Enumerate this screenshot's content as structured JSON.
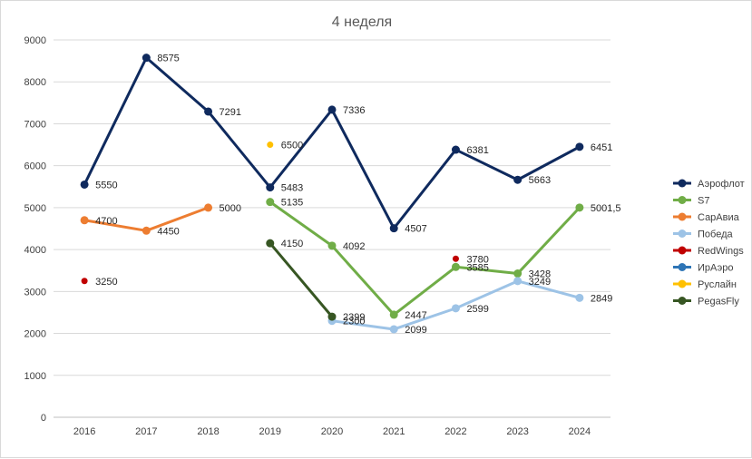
{
  "chart_data": {
    "type": "line",
    "title": "4 неделя",
    "xlabel": "",
    "ylabel": "",
    "categories": [
      "2016",
      "2017",
      "2018",
      "2019",
      "2020",
      "2021",
      "2022",
      "2023",
      "2024"
    ],
    "ylim": [
      0,
      9000
    ],
    "yticks": [
      0,
      1000,
      2000,
      3000,
      4000,
      5000,
      6000,
      7000,
      8000,
      9000
    ],
    "grid": true,
    "legend_position": "right",
    "series": [
      {
        "name": "Аэрофлот",
        "color": "#0f2a5e",
        "values": [
          5550,
          8575,
          7291,
          5483,
          7336,
          4507,
          6381,
          5663,
          6451
        ],
        "labels": [
          "5550",
          "8575",
          "7291",
          "5483",
          "7336",
          "4507",
          "6381",
          "5663",
          "6451"
        ]
      },
      {
        "name": "S7",
        "color": "#70ad47",
        "values": [
          null,
          null,
          null,
          5135,
          4092,
          2447,
          3585,
          3428,
          5001.5
        ],
        "labels": [
          null,
          null,
          null,
          "5135",
          "4092",
          "2447",
          "3585",
          "3428",
          "5001,5"
        ]
      },
      {
        "name": "СарАвиа",
        "color": "#ed7d31",
        "values": [
          4700,
          4450,
          5000,
          null,
          null,
          null,
          null,
          null,
          null
        ],
        "labels": [
          "4700",
          "4450",
          "5000",
          null,
          null,
          null,
          null,
          null,
          null
        ]
      },
      {
        "name": "Победа",
        "color": "#9dc3e6",
        "values": [
          null,
          null,
          null,
          null,
          2300,
          2099,
          2599,
          3249,
          2849
        ],
        "labels": [
          null,
          null,
          null,
          null,
          "2300",
          "2099",
          "2599",
          "3249",
          "2849"
        ]
      },
      {
        "name": "RedWings",
        "color": "#c00000",
        "values": [
          3250,
          null,
          null,
          null,
          null,
          null,
          3780,
          null,
          null
        ],
        "labels": [
          "3250",
          null,
          null,
          null,
          null,
          null,
          "3780",
          null,
          null
        ]
      },
      {
        "name": "ИрАэро",
        "color": "#2e75b6",
        "values": [
          null,
          null,
          null,
          null,
          null,
          null,
          null,
          null,
          null
        ],
        "labels": [
          null,
          null,
          null,
          null,
          null,
          null,
          null,
          null,
          null
        ]
      },
      {
        "name": "Руслайн",
        "color": "#ffc000",
        "values": [
          null,
          null,
          null,
          6500,
          null,
          null,
          null,
          null,
          null
        ],
        "labels": [
          null,
          null,
          null,
          "6500",
          null,
          null,
          null,
          null,
          null
        ]
      },
      {
        "name": "PegasFly",
        "color": "#375623",
        "values": [
          null,
          null,
          null,
          4150,
          2399,
          null,
          null,
          null,
          null
        ],
        "labels": [
          null,
          null,
          null,
          "4150",
          "2399",
          null,
          null,
          null,
          null
        ]
      }
    ]
  }
}
